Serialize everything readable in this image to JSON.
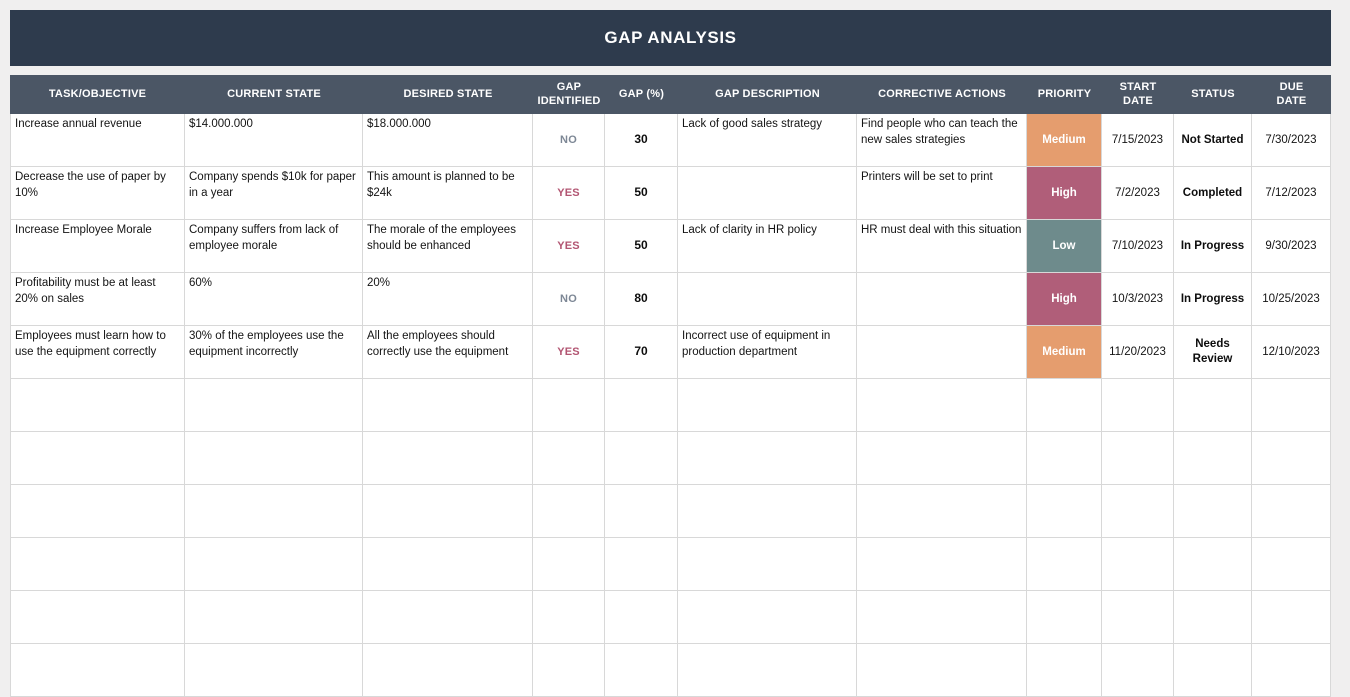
{
  "title": "GAP ANALYSIS",
  "colors": {
    "title_bar": "#2e3b4d",
    "header_row": "#4b5665",
    "priority_medium": "#e59d6e",
    "priority_high": "#b05e79",
    "priority_low": "#6e8b8c",
    "yes_text": "#b25572",
    "no_text": "#7d8795"
  },
  "table": {
    "columns": [
      {
        "key": "task",
        "label": "TASK/OBJECTIVE"
      },
      {
        "key": "current",
        "label": "CURRENT STATE"
      },
      {
        "key": "desired",
        "label": "DESIRED STATE"
      },
      {
        "key": "gap_identified",
        "label": "GAP\nIDENTIFIED"
      },
      {
        "key": "gap_pct",
        "label": "GAP (%)"
      },
      {
        "key": "description",
        "label": "GAP DESCRIPTION"
      },
      {
        "key": "action",
        "label": "CORRECTIVE ACTIONS"
      },
      {
        "key": "priority",
        "label": "PRIORITY"
      },
      {
        "key": "start",
        "label": "START\nDATE"
      },
      {
        "key": "status",
        "label": "STATUS"
      },
      {
        "key": "due",
        "label": "DUE\nDATE"
      }
    ],
    "rows": [
      {
        "task": "Increase annual revenue",
        "current": "$14.000.000",
        "desired": "$18.000.000",
        "gap_identified": "NO",
        "gap_pct": "30",
        "description": "Lack of good sales strategy",
        "action": "Find people who can teach the new sales strategies",
        "priority": "Medium",
        "start": "7/15/2023",
        "status": "Not Started",
        "due": "7/30/2023"
      },
      {
        "task": "Decrease the use of paper by 10%",
        "current": "Company spends $10k for paper in a year",
        "desired": "This amount is planned to be $24k",
        "gap_identified": "YES",
        "gap_pct": "50",
        "description": "",
        "action": "Printers will be set to print",
        "priority": "High",
        "start": "7/2/2023",
        "status": "Completed",
        "due": "7/12/2023"
      },
      {
        "task": "Increase Employee Morale",
        "current": "Company suffers from lack of employee morale",
        "desired": "The morale of the employees should be enhanced",
        "gap_identified": "YES",
        "gap_pct": "50",
        "description": "Lack of clarity in HR policy",
        "action": "HR must deal with this situation",
        "priority": "Low",
        "start": "7/10/2023",
        "status": "In Progress",
        "due": "9/30/2023"
      },
      {
        "task": "Profitability must be at least 20% on sales",
        "current": "60%",
        "desired": "20%",
        "gap_identified": "NO",
        "gap_pct": "80",
        "description": "",
        "action": "",
        "priority": "High",
        "start": "10/3/2023",
        "status": "In Progress",
        "due": "10/25/2023"
      },
      {
        "task": "Employees must learn how to use the equipment correctly",
        "current": "30% of the employees use the equipment incorrectly",
        "desired": "All the employees should correctly use the equipment",
        "gap_identified": "YES",
        "gap_pct": "70",
        "description": "Incorrect use of equipment in production department",
        "action": "",
        "priority": "Medium",
        "start": "11/20/2023",
        "status": "Needs Review",
        "due": "12/10/2023"
      }
    ]
  }
}
